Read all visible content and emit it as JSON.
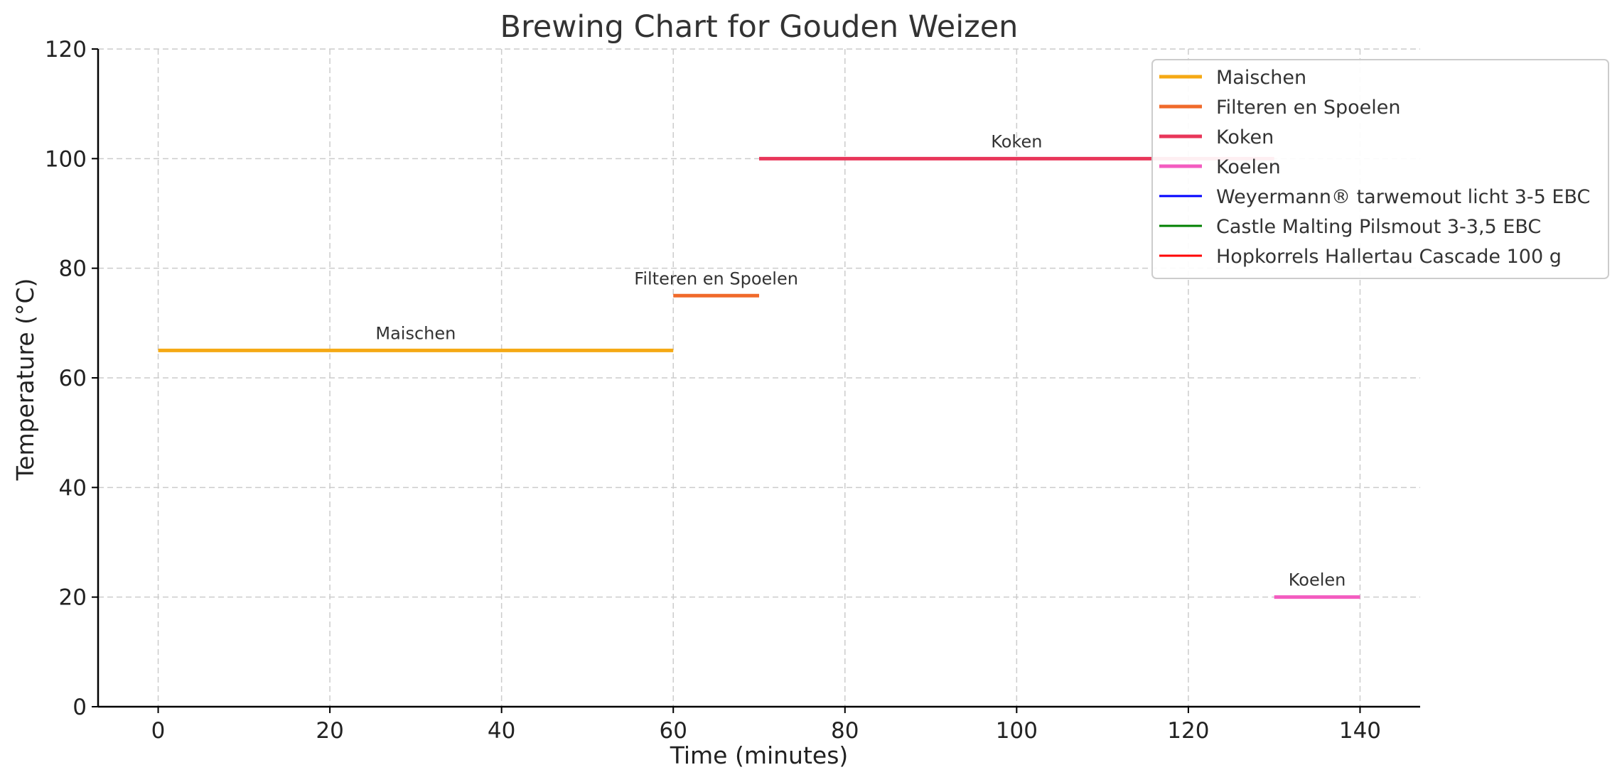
{
  "chart_data": {
    "type": "line",
    "title": "Brewing Chart for Gouden Weizen",
    "xlabel": "Time (minutes)",
    "ylabel": "Temperature (°C)",
    "xlim": [
      -7,
      147
    ],
    "ylim": [
      0,
      120
    ],
    "xticks": [
      0,
      20,
      40,
      60,
      80,
      100,
      120,
      140
    ],
    "yticks": [
      0,
      20,
      40,
      60,
      80,
      100,
      120
    ],
    "grid": true,
    "legend_position": "top-right",
    "series": [
      {
        "name": "Maischen",
        "color": "#f5a914",
        "x": [
          0,
          60
        ],
        "y": [
          65,
          65
        ],
        "label": "Maischen"
      },
      {
        "name": "Filteren en Spoelen",
        "color": "#f06a2b",
        "x": [
          60,
          70
        ],
        "y": [
          75,
          75
        ],
        "label": "Filteren en Spoelen"
      },
      {
        "name": "Koken",
        "color": "#e8365a",
        "x": [
          70,
          130
        ],
        "y": [
          100,
          100
        ],
        "label": "Koken"
      },
      {
        "name": "Koelen",
        "color": "#f35cc0",
        "x": [
          130,
          140
        ],
        "y": [
          20,
          20
        ],
        "label": "Koelen"
      }
    ],
    "extra_legend_entries": [
      {
        "name": "Weyermann® tarwemout licht 3-5 EBC",
        "color": "#0000ff"
      },
      {
        "name": "Castle Malting Pilsmout 3-3,5 EBC",
        "color": "#008000"
      },
      {
        "name": "Hopkorrels Hallertau Cascade 100 g",
        "color": "#ff0000"
      }
    ]
  }
}
